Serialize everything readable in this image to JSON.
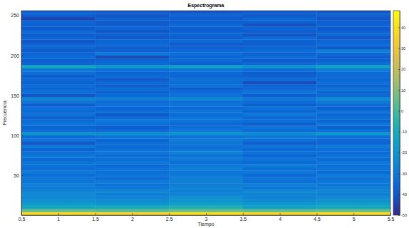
{
  "chart_data": {
    "type": "heatmap",
    "title": "Espectrograma",
    "x_label": "Tiempo",
    "y_label": "Frecuencia",
    "x": [
      1,
      2,
      3,
      4,
      5
    ],
    "y": [
      2,
      6,
      10,
      14,
      18,
      22,
      26,
      30,
      34,
      38,
      42,
      46,
      50,
      54,
      58,
      62,
      66,
      70,
      74,
      78,
      82,
      86,
      90,
      94,
      98,
      102,
      106,
      110,
      114,
      118,
      122,
      126,
      130,
      134,
      138,
      142,
      146,
      150,
      154,
      158,
      162,
      166,
      170,
      174,
      178,
      182,
      186,
      190,
      194,
      198,
      202,
      206,
      210,
      214,
      218,
      222,
      226,
      230,
      234,
      238,
      242,
      246,
      250,
      254
    ],
    "cells": [
      [
        38,
        36,
        40,
        37,
        39
      ],
      [
        5,
        3,
        6,
        4,
        5
      ],
      [
        -12,
        -10,
        -8,
        -14,
        -11
      ],
      [
        -18,
        -20,
        -15,
        -19,
        -17
      ],
      [
        -22,
        -24,
        -20,
        -23,
        -21
      ],
      [
        -25,
        -26,
        -22,
        -27,
        -24
      ],
      [
        -24,
        -28,
        -25,
        -26,
        -27
      ],
      [
        -27,
        -25,
        -28,
        -24,
        -26
      ],
      [
        -29,
        -30,
        -26,
        -31,
        -28
      ],
      [
        -28,
        -32,
        -29,
        -27,
        -30
      ],
      [
        -31,
        -29,
        -27,
        -33,
        -30
      ],
      [
        -30,
        -34,
        -28,
        -31,
        -32
      ],
      [
        -33,
        -31,
        -30,
        -35,
        -29
      ],
      [
        -29,
        -33,
        -31,
        -30,
        -34
      ],
      [
        -34,
        -32,
        -28,
        -33,
        -31
      ],
      [
        -32,
        -35,
        -30,
        -29,
        -33
      ],
      [
        -31,
        -30,
        -33,
        -34,
        -30
      ],
      [
        -35,
        -33,
        -29,
        -31,
        -35
      ],
      [
        -30,
        -34,
        -32,
        -36,
        -31
      ],
      [
        -33,
        -31,
        -27,
        -32,
        -34
      ],
      [
        -36,
        -32,
        -30,
        -35,
        -33
      ],
      [
        -30,
        -35,
        -33,
        -31,
        -29
      ],
      [
        -40,
        -33,
        -31,
        -38,
        -36
      ],
      [
        -32,
        -36,
        -29,
        -33,
        -35
      ],
      [
        -34,
        -31,
        -32,
        -30,
        -33
      ],
      [
        -20,
        -22,
        -21,
        -23,
        -19
      ],
      [
        -33,
        -35,
        -30,
        -34,
        -32
      ],
      [
        -36,
        -38,
        -33,
        -31,
        -37
      ],
      [
        -31,
        -33,
        -35,
        -38,
        -30
      ],
      [
        -34,
        -30,
        -32,
        -33,
        -36
      ],
      [
        -37,
        -34,
        -31,
        -35,
        -33
      ],
      [
        -32,
        -39,
        -34,
        -30,
        -35
      ],
      [
        -35,
        -33,
        -30,
        -36,
        -32
      ],
      [
        -33,
        -36,
        -35,
        -32,
        -38
      ],
      [
        -38,
        -32,
        -31,
        -37,
        -34
      ],
      [
        -31,
        -35,
        -33,
        -34,
        -30
      ],
      [
        -26,
        -28,
        -25,
        -30,
        -24
      ],
      [
        -40,
        -34,
        -32,
        -38,
        -35
      ],
      [
        -33,
        -37,
        -34,
        -31,
        -36
      ],
      [
        -36,
        -33,
        -38,
        -35,
        -32
      ],
      [
        -34,
        -38,
        -32,
        -36,
        -37
      ],
      [
        -37,
        -35,
        -34,
        -42,
        -33
      ],
      [
        -35,
        -39,
        -33,
        -34,
        -36
      ],
      [
        -38,
        -34,
        -36,
        -37,
        -35
      ],
      [
        -33,
        -36,
        -35,
        -38,
        -34
      ],
      [
        -30,
        -33,
        -31,
        -34,
        -29
      ],
      [
        -12,
        -18,
        -15,
        -20,
        -14
      ],
      [
        -36,
        -34,
        -37,
        -35,
        -33
      ],
      [
        -38,
        -36,
        -34,
        -39,
        -37
      ],
      [
        -34,
        -42,
        -36,
        -33,
        -38
      ],
      [
        -36,
        -30,
        -33,
        -37,
        -35
      ],
      [
        -39,
        -37,
        -35,
        -34,
        -28
      ],
      [
        -35,
        -38,
        -37,
        -36,
        -39
      ],
      [
        -37,
        -35,
        -39,
        -38,
        -34
      ],
      [
        -40,
        -36,
        -34,
        -37,
        -36
      ],
      [
        -36,
        -39,
        -38,
        -35,
        -40
      ],
      [
        -38,
        -37,
        -36,
        -40,
        -35
      ],
      [
        -35,
        -40,
        -37,
        -38,
        -37
      ],
      [
        -39,
        -36,
        -38,
        -36,
        -39
      ],
      [
        -37,
        -38,
        -35,
        -41,
        -36
      ],
      [
        -36,
        -39,
        -37,
        -37,
        -38
      ],
      [
        -44,
        -37,
        -39,
        -36,
        -40
      ],
      [
        -38,
        -40,
        -36,
        -39,
        -37
      ],
      [
        -37,
        -38,
        -40,
        -38,
        -39
      ]
    ],
    "xlim": [
      0.5,
      5.5
    ],
    "xticks": [
      0.5,
      1,
      1.5,
      2,
      2.5,
      3,
      3.5,
      4,
      4.5,
      5,
      5.5
    ],
    "ylim": [
      0,
      256
    ],
    "yticks": [
      50,
      100,
      150,
      200,
      250
    ],
    "colorbar_lim": [
      -50,
      48
    ],
    "colorbar_ticks": [
      -50,
      -40,
      -30,
      -20,
      -10,
      0,
      10,
      20,
      30,
      40
    ],
    "grid": false
  }
}
